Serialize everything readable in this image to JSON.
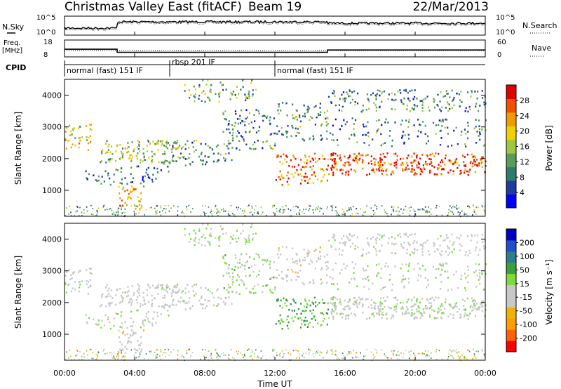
{
  "header": {
    "title": "Christmas Valley East (fitACF)",
    "beam": "Beam 19",
    "date": "22/Mar/2013"
  },
  "top_panels": {
    "nsky_label": "N.Sky",
    "nsearch_label": "N.Search",
    "freq_label_1": "Freq.",
    "freq_label_2": "[MHz]",
    "nave_label": "Nave",
    "cpid_label": "CPID",
    "noise_ticks": [
      "10^5",
      "10^0"
    ],
    "freq_ticks": [
      "18",
      "8"
    ],
    "nave_ticks": [
      "60",
      "0"
    ]
  },
  "cpid_segments": [
    {
      "label": "normal (fast) 151 IF",
      "start_h": 0
    },
    {
      "label": "rbsp 201 IF",
      "start_h": 6
    },
    {
      "label": "normal (fast) 151 IF",
      "start_h": 12
    }
  ],
  "power_panel": {
    "ylabel": "Slant Range [km]",
    "cbar_label": "Power [dB]",
    "cbar_ticks": [
      "28",
      "24",
      "20",
      "16",
      "12",
      "8",
      "4"
    ]
  },
  "velocity_panel": {
    "ylabel": "Slant Range [km]",
    "cbar_label": "Velocity [m s⁻¹]",
    "cbar_ticks": [
      "200",
      "100",
      "50",
      "15",
      "-15",
      "-50",
      "-100",
      "-200"
    ]
  },
  "xaxis": {
    "label": "Time UT",
    "tick_labels": [
      "00:00",
      "04:00",
      "08:00",
      "12:00",
      "16:00",
      "20:00",
      "00:00"
    ]
  },
  "chart_data": {
    "type": "heatmap",
    "x_unit": "hours UT",
    "xlim": [
      0,
      24
    ],
    "ylim": [
      180,
      4500
    ],
    "yticks": [
      1000,
      2000,
      3000,
      4000
    ],
    "xticks": [
      0,
      4,
      8,
      12,
      16,
      20,
      24
    ],
    "frequency_mhz": [
      {
        "start_h": 0,
        "end_h": 3,
        "value": 12.5
      },
      {
        "start_h": 3,
        "end_h": 15,
        "value": 10.5
      },
      {
        "start_h": 15,
        "end_h": 24,
        "value": 12.0
      }
    ],
    "power_db_range": [
      0,
      30
    ],
    "velocity_range": [
      -250,
      250
    ],
    "power_colors": [
      "#0000ff",
      "#1e3ca0",
      "#2e7c6e",
      "#5a9c5a",
      "#a0c83c",
      "#f0d000",
      "#f09c00",
      "#f05000",
      "#e00000"
    ],
    "velocity_colors": [
      "#ff0000",
      "#ff6000",
      "#ff9c00",
      "#f0b400",
      "#c8c8c8",
      "#c8c8c8",
      "#7cdc3c",
      "#3ca03c",
      "#2e7c8c",
      "#1e50c8",
      "#0000c8"
    ],
    "scatter_regions": [
      {
        "t0": 0.0,
        "t1": 1.5,
        "r0": 2300,
        "r1": 3100,
        "power": 18,
        "velocity": -5,
        "density": 0.6
      },
      {
        "t0": 2.0,
        "t1": 6.5,
        "r0": 1900,
        "r1": 2600,
        "power": 14,
        "velocity": -20,
        "density": 0.7
      },
      {
        "t0": 3.0,
        "t1": 4.5,
        "r0": 400,
        "r1": 1200,
        "power": 20,
        "velocity": -40,
        "density": 0.6
      },
      {
        "t0": 1.0,
        "t1": 6.0,
        "r0": 1200,
        "r1": 1800,
        "power": 8,
        "velocity": 10,
        "density": 0.35
      },
      {
        "t0": 5.5,
        "t1": 9.5,
        "r0": 1800,
        "r1": 2600,
        "power": 10,
        "velocity": -10,
        "density": 0.5
      },
      {
        "t0": 6.5,
        "t1": 11.0,
        "r0": 3800,
        "r1": 4500,
        "power": 12,
        "velocity": 20,
        "density": 0.4
      },
      {
        "t0": 9.0,
        "t1": 12.0,
        "r0": 2300,
        "r1": 3600,
        "power": 9,
        "velocity": 30,
        "density": 0.45
      },
      {
        "t0": 12.0,
        "t1": 15.0,
        "r0": 1200,
        "r1": 2200,
        "power": 24,
        "velocity": 80,
        "density": 0.6
      },
      {
        "t0": 12.0,
        "t1": 15.0,
        "r0": 2600,
        "r1": 3800,
        "power": 10,
        "velocity": -30,
        "density": 0.45
      },
      {
        "t0": 15.0,
        "t1": 24.0,
        "r0": 1500,
        "r1": 2200,
        "power": 26,
        "velocity": 0,
        "density": 0.9
      },
      {
        "t0": 15.0,
        "t1": 24.0,
        "r0": 3500,
        "r1": 4200,
        "power": 10,
        "velocity": -15,
        "density": 0.5
      },
      {
        "t0": 15.0,
        "t1": 24.0,
        "r0": 2400,
        "r1": 3300,
        "power": 8,
        "velocity": 5,
        "density": 0.3
      }
    ]
  }
}
